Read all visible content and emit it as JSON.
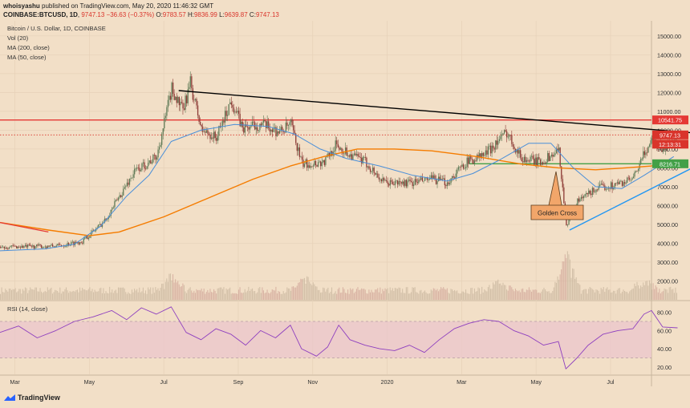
{
  "header": {
    "publisher": "whoisyashu",
    "published_text": "published on TradingView.com, May 20, 2020 11:46:32 GMT",
    "symbol": "COINBASE:BTCUSD, 1D",
    "last": "9747.13",
    "change": "−36.63 (−0.37%)",
    "o": "9783.57",
    "h": "9836.99",
    "l": "9639.87",
    "c": "9747.13"
  },
  "main_legend": {
    "title": "Bitcoin / U.S. Dollar, 1D, COINBASE",
    "vol": "Vol (20)",
    "ma200": "MA (200, close)",
    "ma50": "MA (50, close)"
  },
  "rsi_legend": "RSI (14, close)",
  "badges": {
    "resistance": "10541.75",
    "price": "9747.13",
    "countdown": "12:13:31",
    "support": "8216.71"
  },
  "annotation": "Golden Cross",
  "footer": "TradingView",
  "colors": {
    "background": "#f2dfc7",
    "up_candle": "#5f7a56",
    "down_candle": "#8c3a35",
    "ma200": "#f57c00",
    "ma50": "#4a8fd9",
    "resistance": "#e53935",
    "support": "#43a047",
    "trendline_down": "#000000",
    "trendline_up": "#2196f3",
    "rsi": "#8e3fbf",
    "rsi_band": "#ebc6cc",
    "callout": "#f2a66a"
  },
  "chart_data": [
    {
      "type": "candlestick",
      "title": "Bitcoin / U.S. Dollar, 1D, COINBASE",
      "x_ticks": [
        "Mar",
        "May",
        "Jul",
        "Sep",
        "Nov",
        "2020",
        "Mar",
        "May",
        "Jul"
      ],
      "y_ticks": [
        2000,
        3000,
        4000,
        5000,
        6000,
        7000,
        8000,
        9000,
        10000,
        11000,
        12000,
        13000,
        14000,
        15000
      ],
      "ylim": [
        1000,
        15800
      ],
      "x_months": [
        0,
        25
      ],
      "close_path": [
        [
          0,
          3800
        ],
        [
          1.5,
          3850
        ],
        [
          2.2,
          4100
        ],
        [
          2.8,
          5200
        ],
        [
          3.6,
          7800
        ],
        [
          4.2,
          8600
        ],
        [
          4.6,
          12200
        ],
        [
          4.9,
          11000
        ],
        [
          5.1,
          12500
        ],
        [
          5.4,
          10000
        ],
        [
          5.8,
          9600
        ],
        [
          6.2,
          11600
        ],
        [
          6.5,
          10100
        ],
        [
          7.0,
          10300
        ],
        [
          7.5,
          9900
        ],
        [
          7.8,
          10300
        ],
        [
          8.1,
          8200
        ],
        [
          8.7,
          8300
        ],
        [
          9.0,
          9200
        ],
        [
          9.4,
          8700
        ],
        [
          9.8,
          8300
        ],
        [
          10.3,
          7200
        ],
        [
          11.0,
          7200
        ],
        [
          11.6,
          7400
        ],
        [
          12.0,
          7200
        ],
        [
          12.5,
          8300
        ],
        [
          13.0,
          8700
        ],
        [
          13.4,
          9500
        ],
        [
          13.6,
          9900
        ],
        [
          14.0,
          8500
        ],
        [
          14.5,
          8300
        ],
        [
          15.0,
          8900
        ],
        [
          15.2,
          5000
        ],
        [
          15.5,
          6200
        ],
        [
          16.0,
          6900
        ],
        [
          16.5,
          7100
        ],
        [
          17.0,
          7400
        ],
        [
          17.3,
          8800
        ],
        [
          17.5,
          9500
        ],
        [
          17.8,
          9000
        ],
        [
          18.2,
          9747
        ]
      ],
      "ma200": [
        [
          0,
          5100
        ],
        [
          1.3,
          4700
        ],
        [
          2.4,
          4400
        ],
        [
          3.2,
          4600
        ],
        [
          4.4,
          5400
        ],
        [
          5.6,
          6400
        ],
        [
          6.8,
          7400
        ],
        [
          7.8,
          8100
        ],
        [
          8.7,
          8600
        ],
        [
          9.6,
          9000
        ],
        [
          10.6,
          9000
        ],
        [
          11.6,
          8900
        ],
        [
          12.8,
          8600
        ],
        [
          14.0,
          8200
        ],
        [
          15.0,
          8000
        ],
        [
          16.0,
          7900
        ],
        [
          16.8,
          8000
        ],
        [
          17.5,
          8100
        ],
        [
          18.3,
          8400
        ]
      ],
      "ma50": [
        [
          0,
          3600
        ],
        [
          1.2,
          3700
        ],
        [
          2.0,
          3950
        ],
        [
          2.7,
          4900
        ],
        [
          3.4,
          6500
        ],
        [
          4.0,
          7600
        ],
        [
          4.6,
          9400
        ],
        [
          5.4,
          10000
        ],
        [
          6.3,
          10300
        ],
        [
          7.2,
          10200
        ],
        [
          7.9,
          9800
        ],
        [
          8.6,
          9000
        ],
        [
          9.3,
          8500
        ],
        [
          10.2,
          8100
        ],
        [
          11.1,
          7600
        ],
        [
          12.0,
          7300
        ],
        [
          12.7,
          7700
        ],
        [
          13.4,
          8400
        ],
        [
          14.2,
          9300
        ],
        [
          14.8,
          9300
        ],
        [
          15.4,
          8000
        ],
        [
          16.0,
          7000
        ],
        [
          16.7,
          6900
        ],
        [
          17.3,
          7600
        ],
        [
          18.1,
          8600
        ]
      ],
      "resistance": 10541.75,
      "support": 8216.71,
      "downtrend": [
        [
          4.8,
          12100
        ],
        [
          20.2,
          9600
        ]
      ],
      "uptrend": [
        [
          15.3,
          4700
        ],
        [
          20.2,
          9600
        ]
      ],
      "early_redline": [
        [
          0,
          5100
        ],
        [
          1.3,
          4600
        ]
      ],
      "volume_peaks": [
        [
          15.2,
          0.9
        ],
        [
          4.6,
          0.35
        ],
        [
          8.2,
          0.3
        ],
        [
          13.4,
          0.2
        ],
        [
          17.3,
          0.25
        ]
      ]
    },
    {
      "type": "line",
      "title": "RSI (14, close)",
      "y_ticks": [
        20,
        40,
        60,
        80
      ],
      "ylim": [
        12,
        92
      ],
      "band": [
        30,
        70
      ],
      "values": [
        [
          0,
          58
        ],
        [
          0.5,
          65
        ],
        [
          1.0,
          52
        ],
        [
          1.5,
          60
        ],
        [
          2.0,
          70
        ],
        [
          2.5,
          75
        ],
        [
          3.0,
          82
        ],
        [
          3.4,
          72
        ],
        [
          3.8,
          85
        ],
        [
          4.2,
          78
        ],
        [
          4.6,
          86
        ],
        [
          5.0,
          58
        ],
        [
          5.4,
          50
        ],
        [
          5.8,
          62
        ],
        [
          6.2,
          56
        ],
        [
          6.6,
          44
        ],
        [
          7.0,
          60
        ],
        [
          7.4,
          52
        ],
        [
          7.8,
          66
        ],
        [
          8.1,
          40
        ],
        [
          8.5,
          32
        ],
        [
          8.8,
          42
        ],
        [
          9.1,
          66
        ],
        [
          9.4,
          50
        ],
        [
          9.8,
          44
        ],
        [
          10.2,
          40
        ],
        [
          10.6,
          38
        ],
        [
          11.0,
          44
        ],
        [
          11.4,
          36
        ],
        [
          11.8,
          50
        ],
        [
          12.2,
          62
        ],
        [
          12.6,
          68
        ],
        [
          13.0,
          72
        ],
        [
          13.4,
          70
        ],
        [
          13.8,
          60
        ],
        [
          14.2,
          54
        ],
        [
          14.6,
          44
        ],
        [
          15.0,
          48
        ],
        [
          15.2,
          18
        ],
        [
          15.5,
          30
        ],
        [
          15.8,
          44
        ],
        [
          16.2,
          56
        ],
        [
          16.6,
          60
        ],
        [
          17.0,
          62
        ],
        [
          17.3,
          78
        ],
        [
          17.5,
          82
        ],
        [
          17.8,
          64
        ],
        [
          18.2,
          63
        ]
      ]
    }
  ]
}
